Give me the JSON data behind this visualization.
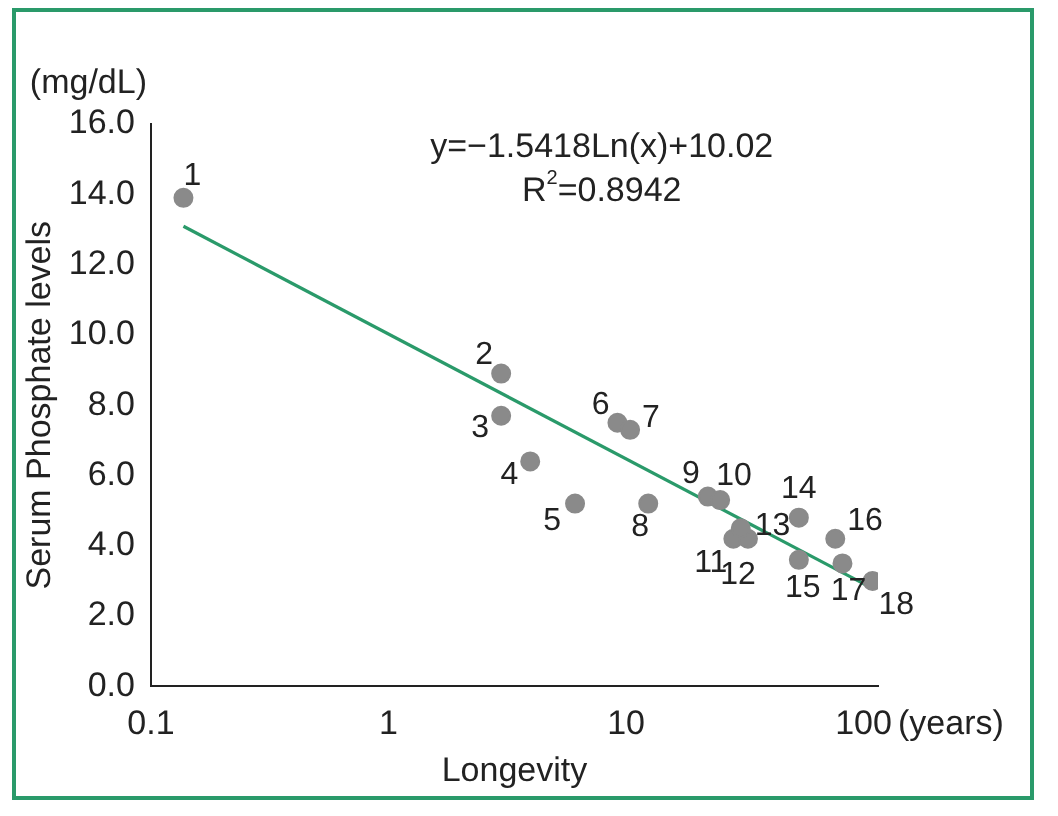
{
  "chart_data": {
    "type": "scatter",
    "xlabel": "Longevity",
    "ylabel": "Serum Phosphate levels",
    "log": "x",
    "xlim": [
      0.1,
      115
    ],
    "xticks": [
      0.1,
      1,
      10,
      100
    ],
    "ylim": [
      0,
      16
    ],
    "yticks": [
      {
        "value": 0,
        "label": "0.0"
      },
      {
        "value": 2,
        "label": "2.0"
      },
      {
        "value": 4,
        "label": "4.0"
      },
      {
        "value": 6,
        "label": "6.0"
      },
      {
        "value": 8,
        "label": "8.0"
      },
      {
        "value": 10,
        "label": "10.0"
      },
      {
        "value": 12,
        "label": "12.0"
      },
      {
        "value": 14,
        "label": "14.0"
      },
      {
        "value": 16,
        "label": "16.0"
      }
    ],
    "grid": false,
    "legend": false,
    "series": [
      {
        "marker": "circle",
        "color": "#8a8a8a",
        "x": [
          0.137,
          2.98,
          2.98,
          3.95,
          6.1,
          9.2,
          10.4,
          12.4,
          22.1,
          24.9,
          28.3,
          32.6,
          30.4,
          53.4,
          53.4,
          76,
          81.5,
          109
        ],
        "values": [
          13.9,
          8.9,
          7.7,
          6.4,
          5.2,
          7.5,
          7.3,
          5.2,
          5.4,
          5.3,
          4.2,
          4.2,
          4.5,
          4.8,
          3.6,
          4.2,
          3.5,
          3.0
        ]
      },
      {
        "type": "line",
        "color": "#2a9a6a",
        "x": [
          0.137,
          109
        ],
        "values": [
          13.09,
          2.79
        ]
      }
    ],
    "annotations": [
      "y=−1.5418Ln(x)+10.02",
      "R$^{2}$=0.8942",
      "(mg/dL)",
      "(years)",
      {
        "text": "1",
        "x": 0.137,
        "y": 13.9
      },
      {
        "text": "2",
        "x": 2.98,
        "y": 8.9
      },
      {
        "text": "3",
        "x": 2.98,
        "y": 7.7
      },
      {
        "text": "4",
        "x": 3.95,
        "y": 6.4
      },
      {
        "text": "5",
        "x": 6.1,
        "y": 5.2
      },
      {
        "text": "6",
        "x": 9.2,
        "y": 7.5
      },
      {
        "text": "7",
        "x": 10.4,
        "y": 7.3
      },
      {
        "text": "8",
        "x": 12.4,
        "y": 5.2
      },
      {
        "text": "9",
        "x": 22.1,
        "y": 5.4
      },
      {
        "text": "10",
        "x": 24.9,
        "y": 5.3
      },
      {
        "text": "11",
        "x": 28.3,
        "y": 4.2
      },
      {
        "text": "12",
        "x": 32.6,
        "y": 4.2
      },
      {
        "text": "13",
        "x": 30.4,
        "y": 4.5
      },
      {
        "text": "14",
        "x": 53.4,
        "y": 4.8
      },
      {
        "text": "15",
        "x": 53.4,
        "y": 3.6
      },
      {
        "text": "16",
        "x": 76,
        "y": 4.2
      },
      {
        "text": "17",
        "x": 81.5,
        "y": 3.5
      },
      {
        "text": "18",
        "x": 109,
        "y": 3.0
      }
    ]
  }
}
